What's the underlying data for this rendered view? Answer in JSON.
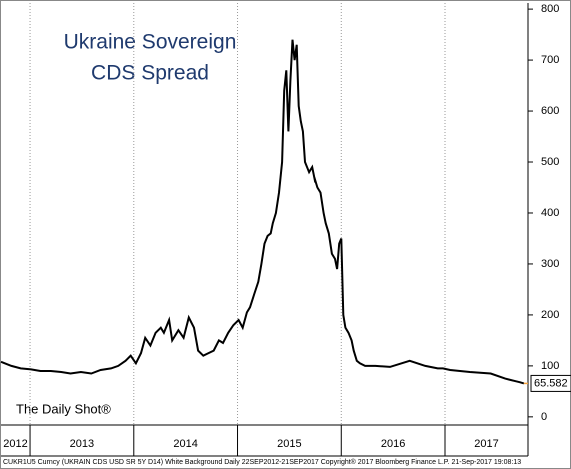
{
  "chart_data": {
    "type": "line",
    "title": "Ukraine Sovereign",
    "subtitle": "CDS Spread",
    "annotation": "The Daily Shot®",
    "footer": "CUKR1U5 Curncy (UKRAIN CDS USD SR 5Y D14) White Background  Daily 22SEP2012-21SEP2017  Copyright® 2017 Bloomberg Finance L.P.   21-Sep-2017 19:08:13",
    "x": [
      2012.72,
      2012.82,
      2012.91,
      2013.01,
      2013.1,
      2013.2,
      2013.3,
      2013.39,
      2013.49,
      2013.59,
      2013.68,
      2013.78,
      2013.85,
      2013.92,
      2013.97,
      2014.02,
      2014.07,
      2014.11,
      2014.16,
      2014.21,
      2014.26,
      2014.29,
      2014.34,
      2014.37,
      2014.43,
      2014.48,
      2014.53,
      2014.58,
      2014.62,
      2014.67,
      2014.72,
      2014.77,
      2014.82,
      2014.86,
      2014.91,
      2014.96,
      2015.01,
      2015.05,
      2015.09,
      2015.12,
      2015.16,
      2015.2,
      2015.23,
      2015.26,
      2015.29,
      2015.32,
      2015.34,
      2015.37,
      2015.4,
      2015.43,
      2015.45,
      2015.47,
      2015.49,
      2015.51,
      2015.53,
      2015.55,
      2015.57,
      2015.59,
      2015.61,
      2015.63,
      2015.65,
      2015.69,
      2015.72,
      2015.75,
      2015.74,
      2015.77,
      2015.8,
      2015.83,
      2015.85,
      2015.88,
      2015.91,
      2015.94,
      2015.96,
      2015.98,
      2016,
      2016.02,
      2016.04,
      2016.07,
      2016.1,
      2016.12,
      2016.15,
      2016.18,
      2016.23,
      2016.33,
      2016.47,
      2016.66,
      2016.81,
      2016.93,
      2016.98,
      2017.05,
      2017.24,
      2017.44,
      2017.58,
      2017.68,
      2017.72,
      2017.76
    ],
    "series": [
      {
        "name": "CUKR1U5 Curncy",
        "color": "#000000",
        "values": [
          108,
          100,
          95,
          93,
          90,
          90,
          88,
          85,
          88,
          85,
          92,
          95,
          100,
          110,
          120,
          105,
          125,
          155,
          140,
          165,
          175,
          165,
          190,
          150,
          170,
          155,
          195,
          175,
          130,
          120,
          125,
          130,
          150,
          145,
          165,
          180,
          190,
          175,
          205,
          215,
          240,
          265,
          300,
          340,
          355,
          360,
          380,
          400,
          440,
          500,
          640,
          680,
          560,
          660,
          740,
          700,
          730,
          610,
          580,
          560,
          500,
          480,
          490,
          460,
          470,
          450,
          440,
          400,
          380,
          360,
          320,
          310,
          290,
          340,
          350,
          200,
          175,
          165,
          150,
          130,
          110,
          105,
          100,
          100,
          98,
          110,
          100,
          95,
          95,
          92,
          88,
          85,
          75,
          70,
          68,
          65.582
        ]
      }
    ],
    "ylim": [
      -16,
      812
    ],
    "yticks": [
      0,
      100,
      200,
      300,
      400,
      500,
      600,
      700,
      800
    ],
    "xlim": [
      2012.72,
      2017.8
    ],
    "year_separators": [
      2013,
      2014,
      2015,
      2016,
      2017
    ],
    "xticks": [
      {
        "value": 2012.86,
        "label": "2012"
      },
      {
        "value": 2013.5,
        "label": "2013"
      },
      {
        "value": 2014.5,
        "label": "2014"
      },
      {
        "value": 2015.5,
        "label": "2015"
      },
      {
        "value": 2016.5,
        "label": "2016"
      },
      {
        "value": 2017.4,
        "label": "2017"
      }
    ]
  }
}
